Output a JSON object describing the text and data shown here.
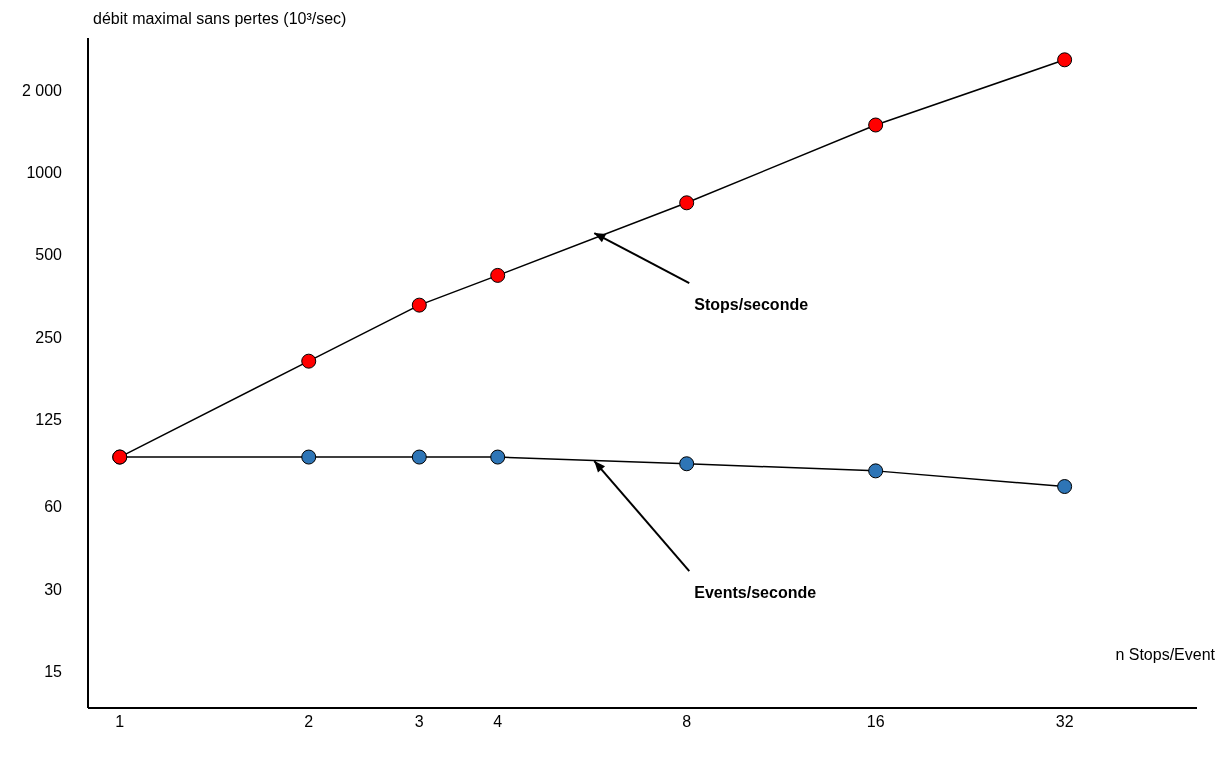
{
  "chart_data": {
    "type": "line",
    "ylabel": "débit maximal sans pertes (10³/sec)",
    "xlabel": "n Stops/Event",
    "log": "xy",
    "marker": "circle",
    "xlim": [
      0.89,
      52
    ],
    "xticks": [
      1,
      2,
      3,
      4,
      8,
      16,
      32
    ],
    "ylim": [
      11,
      3100
    ],
    "yticks": [
      15,
      30,
      60,
      125,
      250,
      500,
      1000,
      {
        "value": 2000,
        "label": "2 000"
      }
    ],
    "x": [
      1,
      2,
      3,
      4,
      8,
      16,
      32
    ],
    "series": [
      {
        "color": "#ff0000",
        "values": [
          91,
          204,
          327,
          420,
          774,
          1490,
          2580
        ]
      },
      {
        "color": "#2e75b6",
        "values": [
          91,
          91,
          91,
          91,
          86,
          81,
          71
        ]
      }
    ],
    "annotations": [
      {
        "text": "Stops/seconde",
        "x": 5.7,
        "y": 600
      },
      {
        "text": "Events/seconde",
        "x": 5.7,
        "y": 88
      }
    ]
  }
}
